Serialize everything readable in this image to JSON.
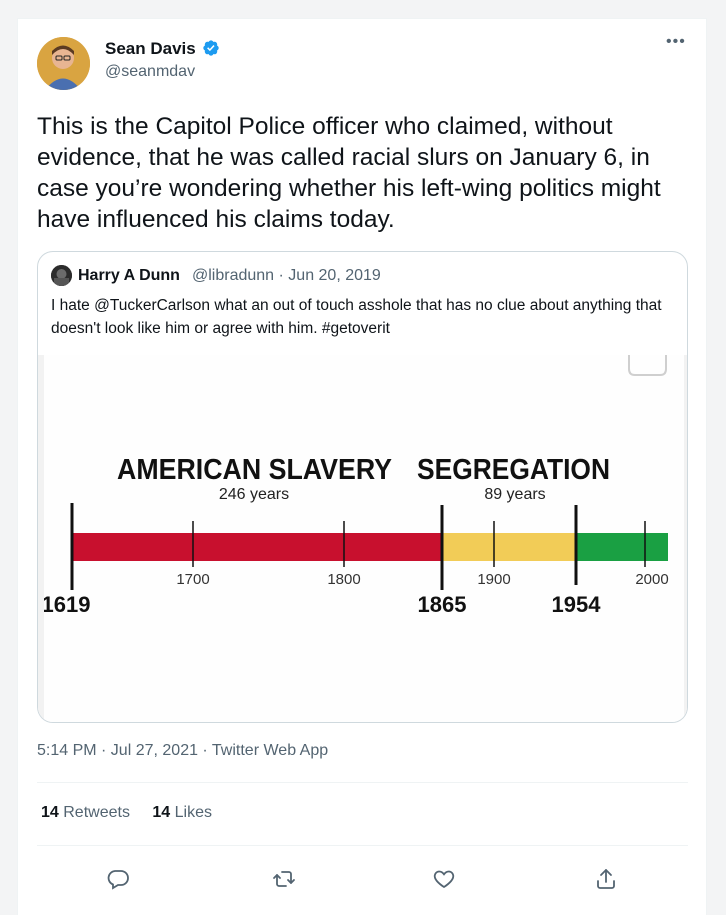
{
  "tweet": {
    "author_name": "Sean Davis",
    "author_handle": "@seanmdav",
    "text": "This is the Capitol Police officer who claimed, without evidence, that he was called racial slurs on January 6, in case you’re wondering whether his left-wing politics might have influenced his claims today.",
    "timestamp": "5:14 PM · Jul 27, 2021 · Twitter Web App",
    "retweets_count": "14",
    "retweets_label": "Retweets",
    "likes_count": "14",
    "likes_label": "Likes"
  },
  "quoted": {
    "author_name": "Harry A Dunn",
    "author_meta": "@libradunn · Jun 20, 2019",
    "text": "I hate @TuckerCarlson what an out of touch asshole that has no clue about anything that doesn't look like him or agree with him. #getoverit",
    "image": {
      "title_left": "AMERICAN SLAVERY",
      "title_right": "SEGREGATION",
      "sub_left": "246 years",
      "sub_right": "89 years",
      "tick_labels": [
        "1700",
        "1800",
        "1900",
        "2000"
      ],
      "era_labels": [
        "1619",
        "1865",
        "1954"
      ],
      "colors": {
        "slavery": "#c8102e",
        "segregation": "#f2cc57",
        "after": "#1aa043"
      }
    }
  },
  "icons": [
    "verified-badge-icon",
    "more-icon",
    "reply-icon",
    "retweet-icon",
    "like-icon",
    "share-icon"
  ]
}
